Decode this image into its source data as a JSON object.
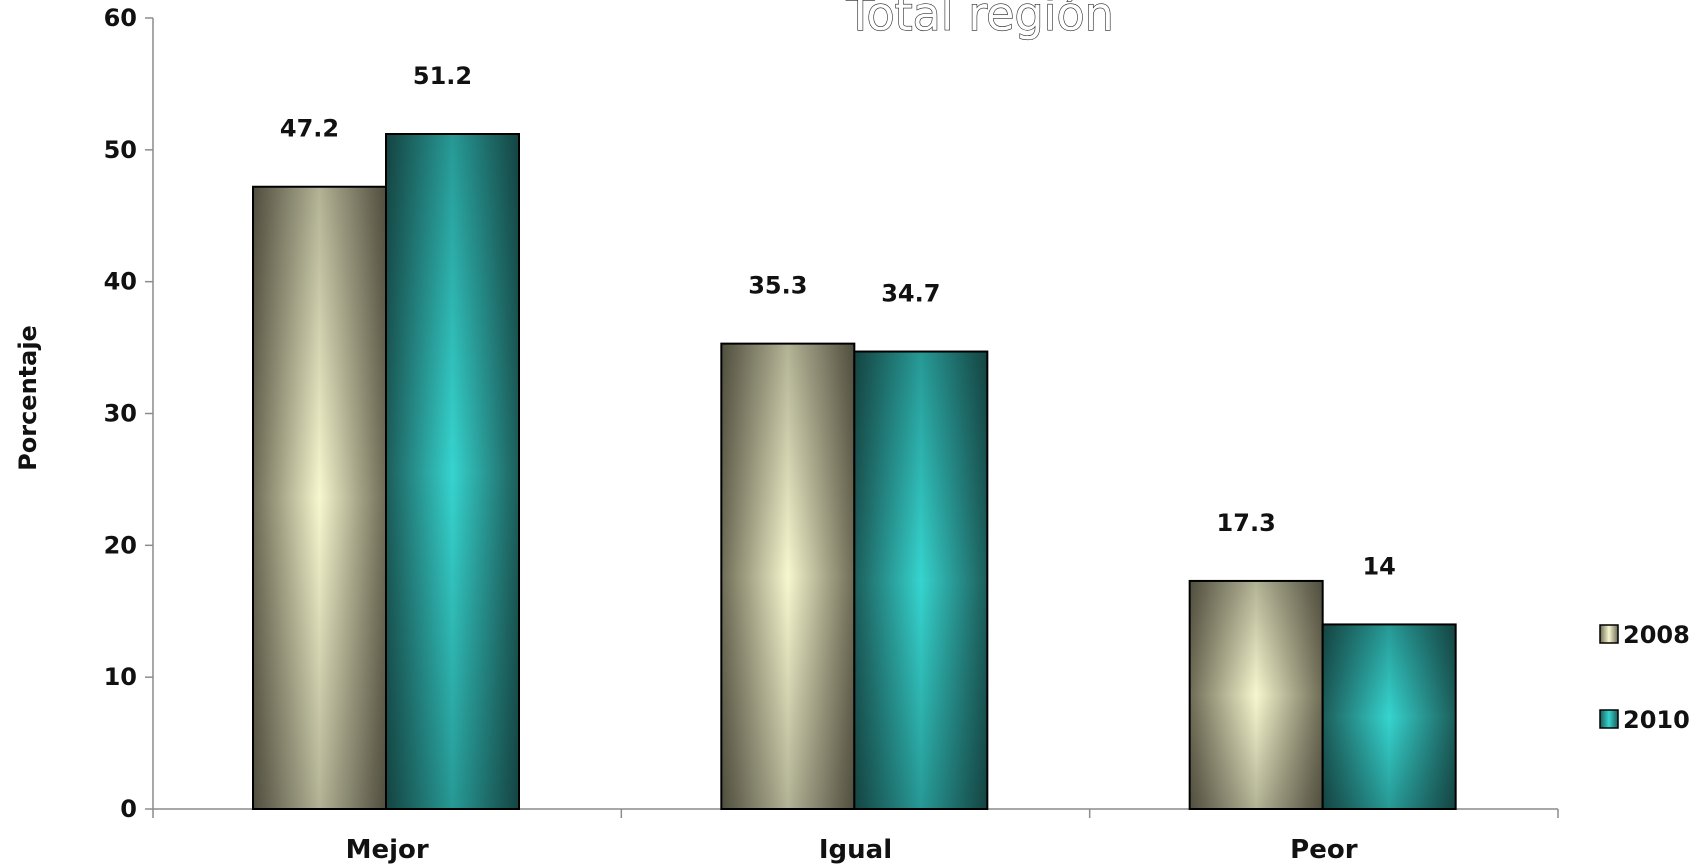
{
  "chart_data": {
    "type": "bar",
    "title": "Total región",
    "ylabel": "Porcentaje",
    "xlabel": "",
    "ylim": [
      0,
      60
    ],
    "yticks": [
      0,
      10,
      20,
      30,
      40,
      50,
      60
    ],
    "categories": [
      "Mejor",
      "Igual",
      "Peor"
    ],
    "series": [
      {
        "name": "2008",
        "values": [
          47.2,
          35.3,
          17.3
        ],
        "data_labels": [
          "47.2",
          "35.3",
          "17.3"
        ],
        "color_dark": "#6e6b55",
        "color_light": "#f7f7cf"
      },
      {
        "name": "2010",
        "values": [
          51.2,
          34.7,
          14
        ],
        "data_labels": [
          "51.2",
          "34.7",
          "14"
        ],
        "color_dark": "#1c5d5a",
        "color_light": "#36d4cf"
      }
    ],
    "legend_position": "right",
    "grid": false
  }
}
